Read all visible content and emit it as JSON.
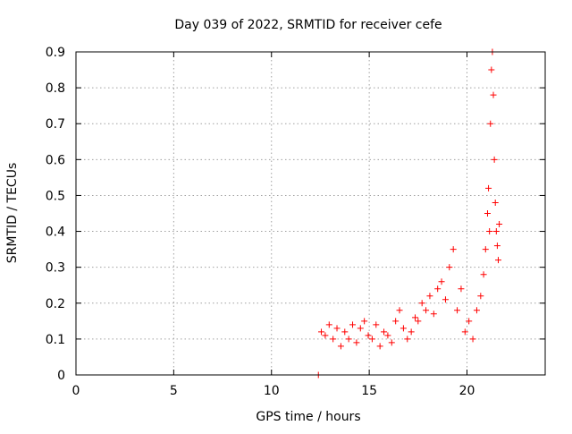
{
  "chart_data": {
    "type": "scatter",
    "title": "Day 039 of 2022, SRMTID for receiver cefe",
    "xlabel": "GPS time / hours",
    "ylabel": "SRMTID / TECUs",
    "xlim": [
      0,
      24
    ],
    "ylim": [
      0,
      0.9
    ],
    "x_ticks": [
      0,
      5,
      10,
      15,
      20
    ],
    "x_tick_labels": [
      "0",
      "5",
      "10",
      "15",
      "20"
    ],
    "y_ticks": [
      0,
      0.1,
      0.2,
      0.3,
      0.4,
      0.5,
      0.6,
      0.7,
      0.8,
      0.9
    ],
    "y_tick_labels": [
      "0",
      "0.1",
      "0.2",
      "0.3",
      "0.4",
      "0.5",
      "0.6",
      "0.7",
      "0.8",
      "0.9"
    ],
    "grid": true,
    "marker": "+",
    "color": "#ff0000",
    "series": [
      {
        "name": "SRMTID",
        "x": [
          12.4,
          12.55,
          12.75,
          12.95,
          13.15,
          13.35,
          13.55,
          13.75,
          13.95,
          14.15,
          14.35,
          14.55,
          14.75,
          14.95,
          15.15,
          15.35,
          15.55,
          15.75,
          15.95,
          16.15,
          16.35,
          16.55,
          16.75,
          16.95,
          17.15,
          17.35,
          17.5,
          17.7,
          17.9,
          18.1,
          18.3,
          18.5,
          18.7,
          18.9,
          19.1,
          19.3,
          19.5,
          19.7,
          19.9,
          20.1,
          20.3,
          20.5,
          20.7,
          20.85,
          20.95,
          21.05,
          21.1,
          21.15,
          21.2,
          21.25,
          21.3,
          21.35,
          21.4,
          21.45,
          21.5,
          21.55,
          21.6,
          21.65
        ],
        "y": [
          0.0,
          0.12,
          0.11,
          0.14,
          0.1,
          0.13,
          0.08,
          0.12,
          0.1,
          0.14,
          0.09,
          0.13,
          0.15,
          0.11,
          0.1,
          0.14,
          0.08,
          0.12,
          0.11,
          0.09,
          0.15,
          0.18,
          0.13,
          0.1,
          0.12,
          0.16,
          0.15,
          0.2,
          0.18,
          0.22,
          0.17,
          0.24,
          0.26,
          0.21,
          0.3,
          0.35,
          0.18,
          0.24,
          0.12,
          0.15,
          0.1,
          0.18,
          0.22,
          0.28,
          0.35,
          0.45,
          0.52,
          0.4,
          0.7,
          0.85,
          0.9,
          0.78,
          0.6,
          0.48,
          0.4,
          0.36,
          0.32,
          0.42
        ]
      }
    ]
  }
}
